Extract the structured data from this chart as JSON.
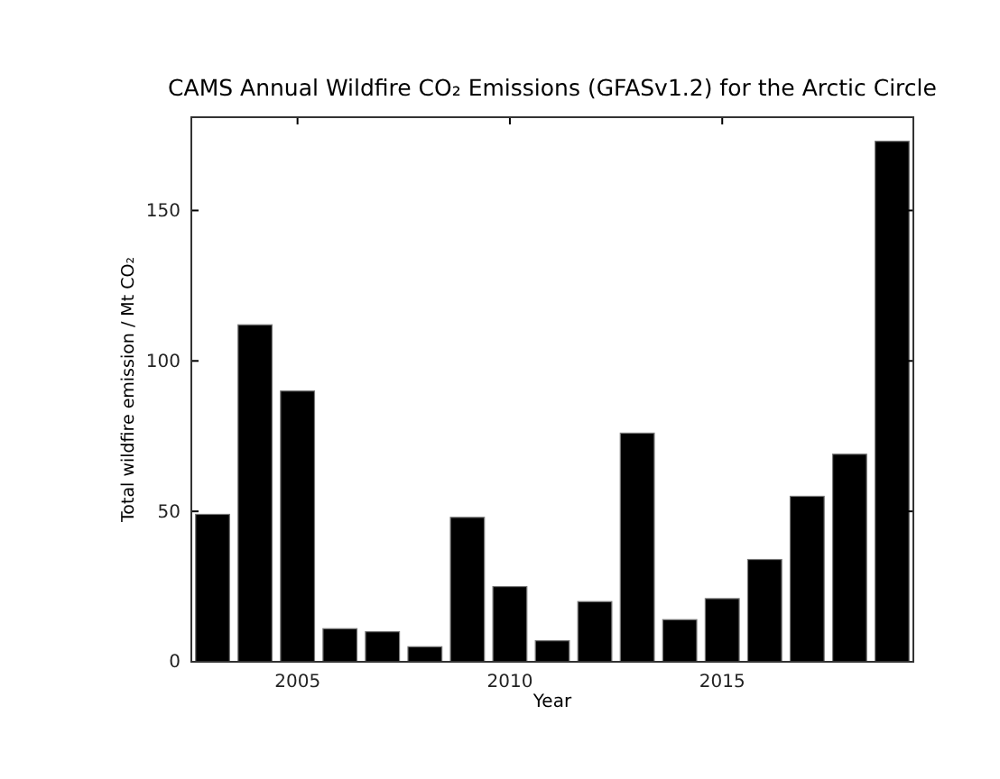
{
  "chart_data": {
    "type": "bar",
    "title": "CAMS Annual Wildfire CO₂ Emissions  (GFASv1.2) for the Arctic Circle",
    "xlabel": "Year",
    "ylabel": "Total wildfire emission / Mt CO₂",
    "x": [
      2003,
      2004,
      2005,
      2006,
      2007,
      2008,
      2009,
      2010,
      2011,
      2012,
      2013,
      2014,
      2015,
      2016,
      2017,
      2018,
      2019
    ],
    "values": [
      49,
      112,
      90,
      11,
      10,
      5,
      48,
      25,
      7,
      20,
      76,
      14,
      21,
      34,
      55,
      69,
      173
    ],
    "color": "#000000",
    "xlim": [
      2002.5,
      2019.5
    ],
    "xticks": [
      2005,
      2010,
      2015
    ],
    "ylim": [
      0,
      181
    ],
    "yticks": [
      0,
      50,
      100,
      150
    ],
    "grid": false
  }
}
